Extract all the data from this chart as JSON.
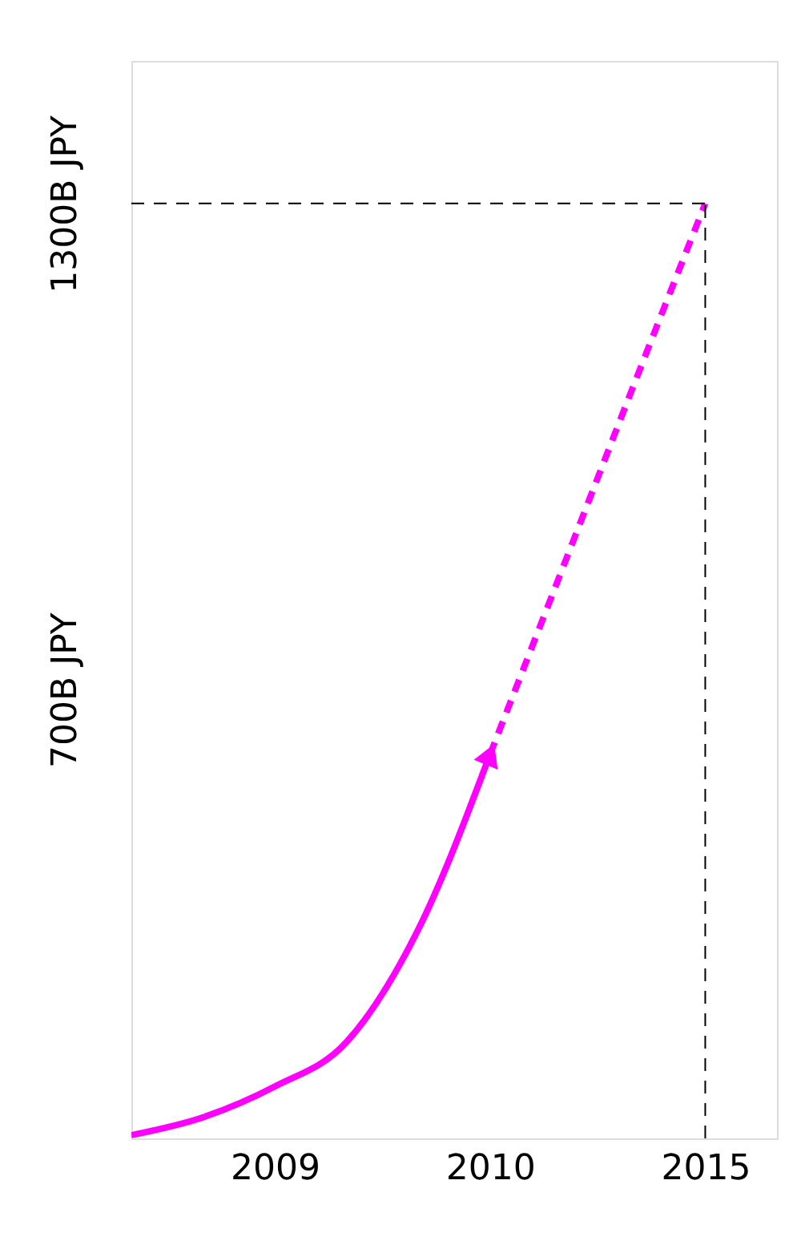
{
  "chart_data": {
    "type": "line",
    "categories": [
      null,
      null,
      "2009",
      null,
      null,
      "2010",
      null,
      null,
      "2015",
      null
    ],
    "series": [
      {
        "color": "#ff00ff",
        "line_style": "solid",
        "values": [
          150,
          172,
          210,
          265,
          404,
          620,
          null,
          null,
          null,
          null
        ]
      },
      {
        "color": "#ff00ff",
        "line_style": "dashed",
        "values": [
          null,
          null,
          null,
          null,
          null,
          620,
          847,
          1075,
          1300,
          null
        ]
      }
    ],
    "ylim": [
      146,
      1476
    ],
    "yticks": [
      {
        "value": 700,
        "label": "700B JPY"
      },
      {
        "value": 1300,
        "label": "1300B JPY"
      }
    ],
    "ref_lines": [
      {
        "axis": "x",
        "value": "2015",
        "color": "#000000",
        "line_style": "dashed"
      },
      {
        "axis": "y",
        "value": 1300,
        "color": "#000000",
        "line_style": "dashed"
      }
    ],
    "grid": false,
    "marker": "none"
  }
}
